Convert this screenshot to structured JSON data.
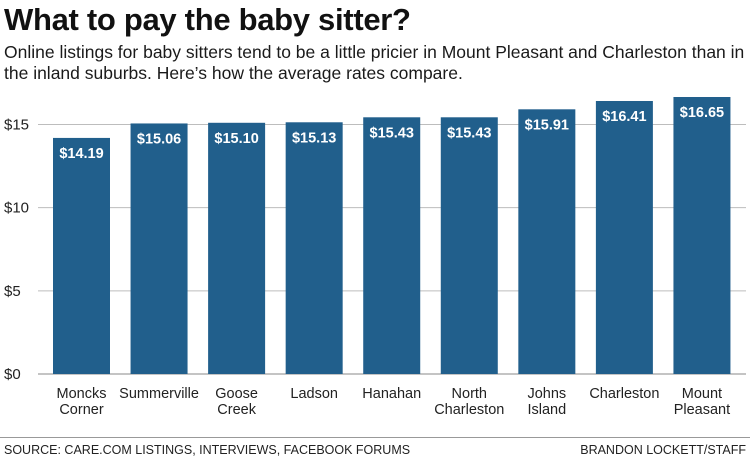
{
  "header": {
    "title": "What to pay the baby sitter?",
    "subtitle": "Online listings for baby sitters tend to be a little pricier in Mount Pleasant and Charleston than in the inland suburbs. Here’s how the average rates compare."
  },
  "footer": {
    "source": "SOURCE: CARE.COM LISTINGS, INTERVIEWS, FACEBOOK FORUMS",
    "credit": "BRANDON LOCKETT/STAFF"
  },
  "colors": {
    "bar": "#215f8c",
    "grid": "#bdbdbd",
    "label": "#ffffff"
  },
  "chart_data": {
    "type": "bar",
    "categories": [
      [
        "Moncks",
        "Corner"
      ],
      [
        "Summerville"
      ],
      [
        "Goose",
        "Creek"
      ],
      [
        "Ladson"
      ],
      [
        "Hanahan"
      ],
      [
        "North",
        "Charleston"
      ],
      [
        "Johns",
        "Island"
      ],
      [
        "Charleston"
      ],
      [
        "Mount",
        "Pleasant"
      ]
    ],
    "values": [
      14.19,
      15.06,
      15.1,
      15.13,
      15.43,
      15.43,
      15.91,
      16.41,
      16.65
    ],
    "data_labels": [
      "$14.19",
      "$15.06",
      "$15.10",
      "$15.13",
      "$15.43",
      "$15.43",
      "$15.91",
      "$16.41",
      "$16.65"
    ],
    "y_ticks": [
      0,
      5,
      10,
      15
    ],
    "y_tick_labels": [
      "$0",
      "$5",
      "$10",
      "$15"
    ],
    "ylim": [
      0,
      16.65
    ],
    "grid": true,
    "title": "What to pay the baby sitter?",
    "xlabel": "",
    "ylabel": ""
  }
}
